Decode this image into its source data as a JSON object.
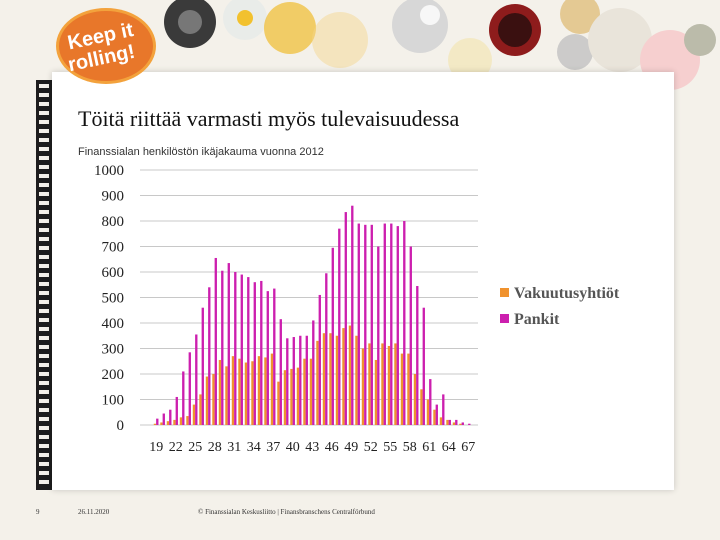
{
  "logo": {
    "text_line1": "Keep it",
    "text_line2": "rolling!"
  },
  "slide": {
    "title": "Töitä riittää varmasti myös tulevaisuudessa",
    "subtitle": "Finanssialan henkilöstön ikäjakauma vuonna 2012"
  },
  "footer": {
    "page_number": "9",
    "date": "26.11.2020",
    "source": "© Finanssialan Keskusliitto | Finansbranschens Centralförbund"
  },
  "colors": {
    "vakuutusyhtiot": "#f0922e",
    "pankit": "#cc1fae",
    "grid": "#c8c8c8"
  },
  "chart_data": {
    "type": "bar",
    "title": "",
    "xlabel": "",
    "ylabel": "",
    "ylim": [
      0,
      1000
    ],
    "yticks": [
      "0",
      "100",
      "200",
      "300",
      "400",
      "500",
      "600",
      "700",
      "800",
      "900",
      "1000"
    ],
    "grid": true,
    "legend": "right",
    "categories": [
      17,
      18,
      19,
      20,
      21,
      22,
      23,
      24,
      25,
      26,
      27,
      28,
      29,
      30,
      31,
      32,
      33,
      34,
      35,
      36,
      37,
      38,
      39,
      40,
      41,
      42,
      43,
      44,
      45,
      46,
      47,
      48,
      49,
      50,
      51,
      52,
      53,
      54,
      55,
      56,
      57,
      58,
      59,
      60,
      61,
      62,
      63,
      64,
      65,
      66,
      67,
      68
    ],
    "xtick_labels": [
      "19",
      "22",
      "25",
      "28",
      "31",
      "34",
      "37",
      "40",
      "43",
      "46",
      "49",
      "52",
      "55",
      "58",
      "61",
      "64",
      "67"
    ],
    "xtick_categories": [
      19,
      22,
      25,
      28,
      31,
      34,
      37,
      40,
      43,
      46,
      49,
      52,
      55,
      58,
      61,
      64,
      67
    ],
    "series": [
      {
        "name": "Vakuutusyhtiöt",
        "values": [
          0,
          0,
          5,
          10,
          15,
          20,
          30,
          35,
          80,
          120,
          190,
          200,
          255,
          230,
          270,
          260,
          245,
          250,
          270,
          265,
          280,
          170,
          215,
          220,
          225,
          260,
          260,
          330,
          360,
          360,
          350,
          380,
          390,
          350,
          300,
          320,
          255,
          320,
          310,
          320,
          280,
          280,
          200,
          140,
          100,
          60,
          30,
          20,
          10,
          5,
          0,
          0
        ]
      },
      {
        "name": "Pankit",
        "values": [
          0,
          0,
          25,
          45,
          60,
          110,
          210,
          285,
          355,
          460,
          540,
          655,
          605,
          635,
          600,
          590,
          580,
          560,
          565,
          525,
          535,
          415,
          340,
          345,
          350,
          350,
          410,
          510,
          595,
          695,
          770,
          835,
          860,
          790,
          785,
          785,
          700,
          790,
          790,
          780,
          800,
          700,
          545,
          460,
          180,
          80,
          120,
          20,
          20,
          10,
          5,
          0
        ]
      }
    ]
  }
}
